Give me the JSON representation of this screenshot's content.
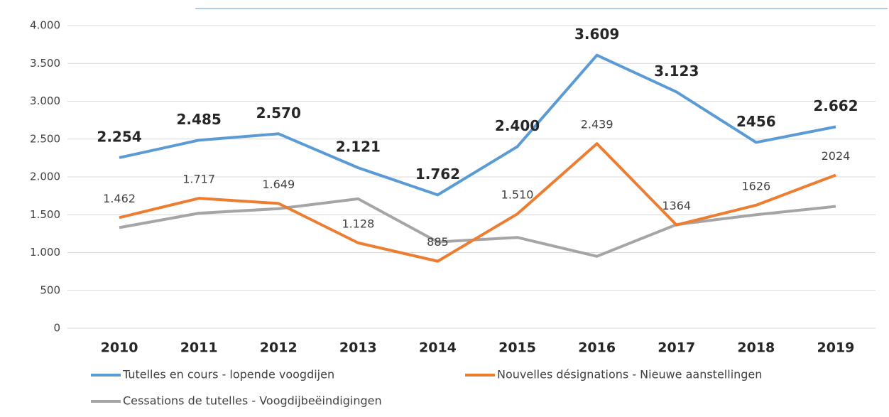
{
  "chart_data": {
    "type": "line",
    "categories": [
      "2010",
      "2011",
      "2012",
      "2013",
      "2014",
      "2015",
      "2016",
      "2017",
      "2018",
      "2019"
    ],
    "series": [
      {
        "name": "Tutelles en cours - lopende voogdijen",
        "color": "#5b9bd5",
        "values": [
          2254,
          2485,
          2570,
          2121,
          1762,
          2400,
          3609,
          3123,
          2456,
          2662
        ],
        "value_labels": [
          "2.254",
          "2.485",
          "2.570",
          "2.121",
          "1.762",
          "2.400",
          "3.609",
          "3.123",
          "2456",
          "2.662"
        ]
      },
      {
        "name": "Nouvelles désignations - Nieuwe aanstellingen",
        "color": "#ed7d31",
        "values": [
          1462,
          1717,
          1649,
          1128,
          885,
          1510,
          2439,
          1364,
          1626,
          2024
        ],
        "value_labels": [
          "1.462",
          "1.717",
          "1.649",
          "1.128",
          "885",
          "1.510",
          "2.439",
          "1364",
          "1626",
          "2024"
        ]
      },
      {
        "name": "Cessations de tutelles - Voogdijbeëindigingen",
        "color": "#a5a5a5",
        "values": [
          1330,
          1520,
          1580,
          1710,
          1140,
          1200,
          950,
          1370,
          1500,
          1610
        ]
      }
    ],
    "ylim": [
      0,
      4000
    ],
    "yticks": [
      0,
      500,
      {
        "value": 1000,
        "label": "1.000"
      },
      {
        "value": 1500,
        "label": "1.500"
      },
      {
        "value": 2000,
        "label": "2.000"
      },
      {
        "value": 2500,
        "label": "2.500"
      },
      {
        "value": 3000,
        "label": "3.000"
      },
      {
        "value": 3500,
        "label": "3.500"
      },
      {
        "value": 4000,
        "label": "4.000"
      }
    ],
    "grid": true,
    "legend": "bottom"
  }
}
